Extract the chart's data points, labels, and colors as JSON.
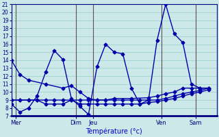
{
  "xlabel": "Température (°c)",
  "xlim": [
    0,
    24
  ],
  "ylim": [
    7,
    21
  ],
  "yticks": [
    7,
    8,
    9,
    10,
    11,
    12,
    13,
    14,
    15,
    16,
    17,
    18,
    19,
    20,
    21
  ],
  "day_positions": [
    0.5,
    7.5,
    9.5,
    17.5,
    21.5
  ],
  "day_labels": [
    "Mer",
    "Dim",
    "Jeu",
    "Ven",
    "Sam"
  ],
  "vline_positions": [
    0.5,
    7.5,
    9.5,
    17.5,
    21.5
  ],
  "bg_color": "#cce8e8",
  "grid_color": "#99cccc",
  "line_color": "#0000aa",
  "lines": [
    {
      "x": [
        0,
        1,
        2,
        4,
        6,
        7,
        8,
        9,
        10,
        11,
        12,
        14,
        16,
        17,
        18,
        19,
        20,
        21,
        22,
        23
      ],
      "y": [
        14,
        12.2,
        11.5,
        11.0,
        10.5,
        10.8,
        10.0,
        9.2,
        9.0,
        9.0,
        9.2,
        9.2,
        9.3,
        9.5,
        9.8,
        10.0,
        10.5,
        10.5,
        10.5,
        10.5
      ]
    },
    {
      "x": [
        0,
        1,
        2,
        3,
        4,
        5,
        6,
        7,
        8,
        9,
        10,
        11,
        12,
        13,
        14,
        15,
        16,
        17,
        18,
        19,
        20,
        21,
        22,
        23
      ],
      "y": [
        9.0,
        9.0,
        9.0,
        9.0,
        8.5,
        8.5,
        8.5,
        9.0,
        8.5,
        8.5,
        8.5,
        8.5,
        8.5,
        8.5,
        8.5,
        8.5,
        8.7,
        8.8,
        9.0,
        9.2,
        9.5,
        9.8,
        10.0,
        10.3
      ]
    },
    {
      "x": [
        0,
        1,
        2,
        3,
        4,
        5,
        6,
        7,
        8,
        9,
        10,
        11,
        12,
        13,
        14,
        15,
        16,
        17,
        18,
        19,
        20,
        21,
        22,
        23
      ],
      "y": [
        8.5,
        7.5,
        8.0,
        9.5,
        12.5,
        15.2,
        14.1,
        9.2,
        8.2,
        7.2,
        13.2,
        16.0,
        15.0,
        14.8,
        10.5,
        8.5,
        9.0,
        16.5,
        21.0,
        17.3,
        16.2,
        11.0,
        10.5,
        10.5
      ]
    },
    {
      "x": [
        0,
        1,
        2,
        3,
        4,
        5,
        6,
        7,
        8,
        9,
        10,
        11,
        12,
        13,
        14,
        15,
        16,
        17,
        18,
        19,
        20,
        21,
        22,
        23
      ],
      "y": [
        9.0,
        9.0,
        9.0,
        9.0,
        9.0,
        9.0,
        9.0,
        9.0,
        9.0,
        9.0,
        9.0,
        9.0,
        9.0,
        9.0,
        9.0,
        9.0,
        9.0,
        9.0,
        9.2,
        9.5,
        9.8,
        10.0,
        10.2,
        10.5
      ]
    }
  ],
  "marker": "D",
  "markersize": 2.5,
  "linewidth": 1.0
}
